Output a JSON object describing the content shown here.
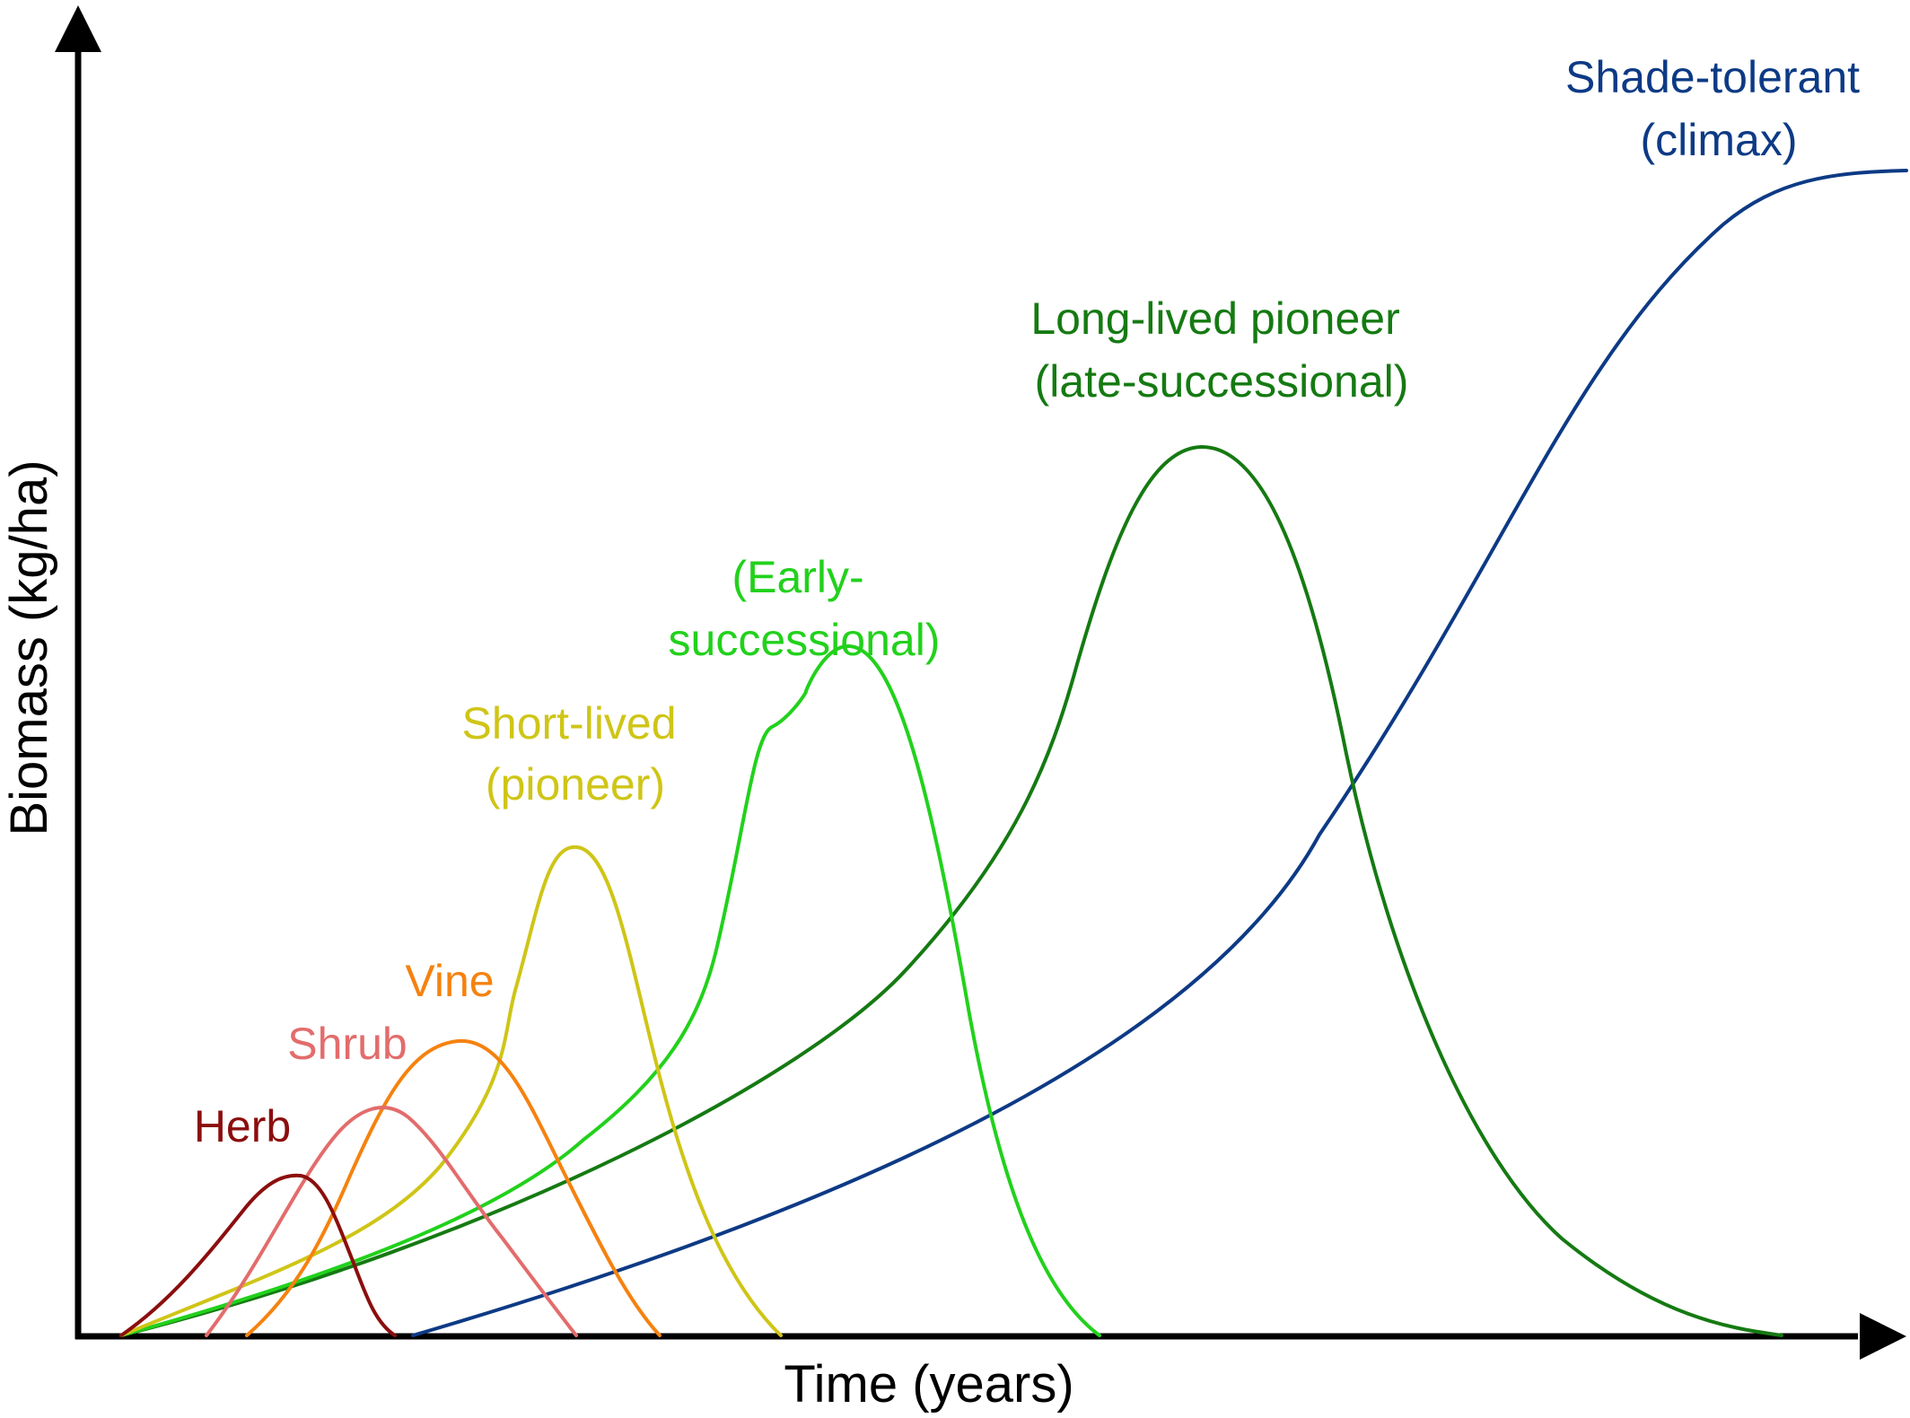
{
  "axes": {
    "x_title": "Time (years)",
    "y_title": "Biomass (kg/ha)"
  },
  "series": [
    {
      "key": "herb",
      "label_lines": [
        "Herb"
      ],
      "color": "#8b0e0e"
    },
    {
      "key": "shrub",
      "label_lines": [
        "Shrub"
      ],
      "color": "#e36c6c"
    },
    {
      "key": "vine",
      "label_lines": [
        "Vine"
      ],
      "color": "#f5820f"
    },
    {
      "key": "short_lived",
      "label_lines": [
        "Short-lived",
        "(pioneer)"
      ],
      "color": "#cfc517"
    },
    {
      "key": "early",
      "label_lines": [
        "(Early-",
        "successional)"
      ],
      "color": "#22d11c"
    },
    {
      "key": "long_lived",
      "label_lines": [
        "Long-lived pioneer",
        "(late-successional)"
      ],
      "color": "#157a12"
    },
    {
      "key": "shade",
      "label_lines": [
        "Shade-tolerant",
        "(climax)"
      ],
      "color": "#0d3a85"
    }
  ]
}
